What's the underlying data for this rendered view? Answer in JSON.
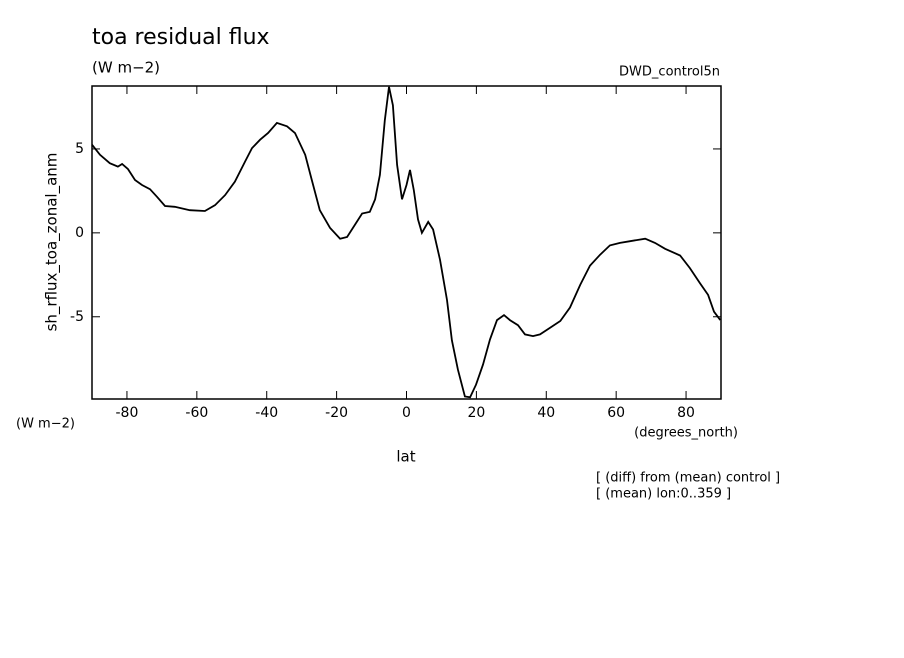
{
  "chart_data": {
    "type": "line",
    "title": "toa residual flux",
    "subtitle": "(W m−2)",
    "run_label": "DWD_control5n",
    "y_label": "sh_rflux_toa_zonal_anm",
    "y_units": "(W m−2)",
    "x_label": "lat",
    "x_units": "(degrees_north)",
    "annotations": [
      "[ (diff) from (mean) control ]",
      "[ (mean) lon:0..359 ]"
    ],
    "x": [
      -90,
      -87.7,
      -84.9,
      -82.6,
      -81.4,
      -79.7,
      -77.7,
      -75.7,
      -73.4,
      -71.4,
      -69.1,
      -66.3,
      -62,
      -57.7,
      -54.8,
      -51.9,
      -49.1,
      -46.2,
      -44.2,
      -41.9,
      -39.6,
      -37.1,
      -34.2,
      -31.9,
      -29,
      -27.1,
      -24.8,
      -21.9,
      -19,
      -17,
      -14.7,
      -12.7,
      -10.5,
      -9,
      -7.6,
      -6.2,
      -5,
      -3.9,
      -2.7,
      -1.3,
      0,
      1,
      2.1,
      3.3,
      4.4,
      6.2,
      7.6,
      9.6,
      11.6,
      13,
      14.7,
      16.7,
      18.2,
      19.9,
      21.9,
      23.9,
      25.9,
      27.9,
      29.6,
      31.9,
      33.9,
      36.2,
      38.2,
      41.1,
      44,
      46.8,
      49.7,
      52.5,
      55.4,
      58.2,
      61.1,
      64,
      68.3,
      71.1,
      74,
      78.3,
      81.1,
      84,
      86.3,
      88,
      89.8
    ],
    "series": [
      {
        "name": "sh_rflux_toa_zonal_anm",
        "color": "#000000",
        "values": [
          5.25,
          4.65,
          4.15,
          3.95,
          4.1,
          3.8,
          3.15,
          2.85,
          2.6,
          2.15,
          1.6,
          1.55,
          1.35,
          1.3,
          1.65,
          2.25,
          3.05,
          4.25,
          5.05,
          5.55,
          5.95,
          6.55,
          6.35,
          5.95,
          4.65,
          3.15,
          1.35,
          0.3,
          -0.35,
          -0.25,
          0.5,
          1.15,
          1.25,
          2,
          3.45,
          6.7,
          8.7,
          7.6,
          4.05,
          2.0,
          2.85,
          3.75,
          2.55,
          0.8,
          0,
          0.65,
          0.2,
          -1.6,
          -4.0,
          -6.4,
          -8.15,
          -9.75,
          -9.8,
          -9.05,
          -7.85,
          -6.35,
          -5.2,
          -4.9,
          -5.2,
          -5.5,
          -6.05,
          -6.15,
          -6.05,
          -5.65,
          -5.25,
          -4.45,
          -3.1,
          -1.95,
          -1.3,
          -0.75,
          -0.6,
          -0.5,
          -0.35,
          -0.6,
          -0.95,
          -1.35,
          -2.1,
          -3.0,
          -3.7,
          -4.7,
          -5.2
        ]
      }
    ],
    "xlim": [
      -90,
      90
    ],
    "xticks": [
      -80,
      -60,
      -40,
      -20,
      0,
      20,
      40,
      60,
      80
    ],
    "ylim": [
      -9.9,
      8.75
    ],
    "yticks": [
      -5,
      0,
      5
    ]
  }
}
